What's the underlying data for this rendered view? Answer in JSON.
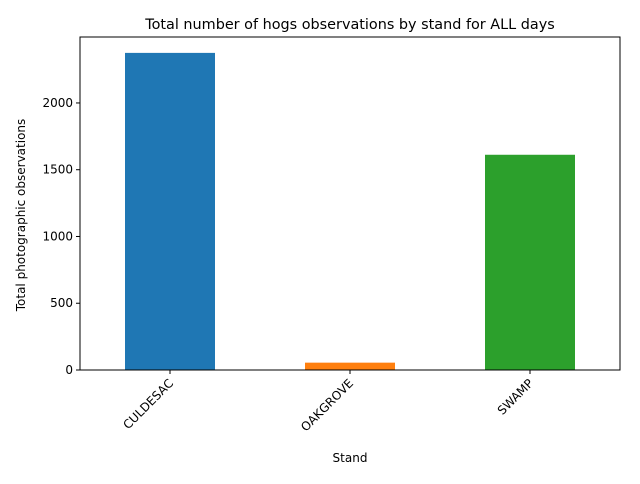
{
  "chart_data": {
    "type": "bar",
    "title": "Total number of hogs observations by stand for ALL days",
    "xlabel": "Stand",
    "ylabel": "Total photographic observations",
    "categories": [
      "CULDESAC",
      "OAKGROVE",
      "SWAMP"
    ],
    "values": [
      2375,
      55,
      1612
    ],
    "colors": [
      "#1f77b4",
      "#ff7f0e",
      "#2ca02c"
    ],
    "ylim": [
      0,
      2494
    ],
    "yticks": [
      0,
      500,
      1000,
      1500,
      2000
    ],
    "grid": false,
    "legend": "none"
  }
}
